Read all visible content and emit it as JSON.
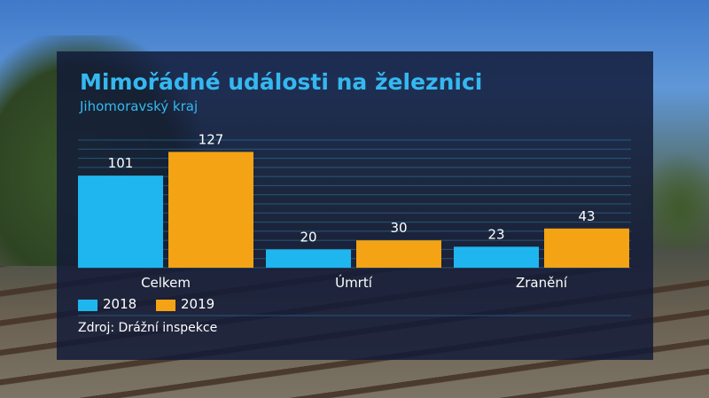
{
  "chart_data": {
    "type": "bar",
    "title": "Mimořádné události na železnici",
    "subtitle": "Jihomoravský kraj",
    "categories": [
      "Celkem",
      "Úmrtí",
      "Zranění"
    ],
    "series": [
      {
        "name": "2018",
        "values": [
          101,
          20,
          23
        ],
        "color": "#1fb6f0"
      },
      {
        "name": "2019",
        "values": [
          127,
          30,
          43
        ],
        "color": "#f3a313"
      }
    ],
    "ylim": [
      0,
      140
    ],
    "grid": true,
    "legend": "bottom-left",
    "source": "Zdroj: Drážní inspekce"
  }
}
